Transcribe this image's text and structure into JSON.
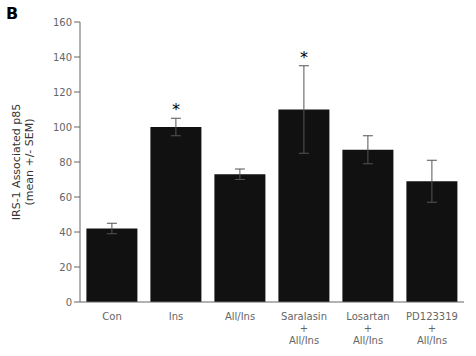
{
  "chart_data": {
    "type": "bar",
    "panel_label": "B",
    "categories": [
      "Con",
      "Ins",
      "All/Ins",
      "Saralasin\n+\nAll/Ins",
      "Losartan\n+\nAll/Ins",
      "PD123319\n+\nAll/Ins"
    ],
    "values": [
      42,
      100,
      73,
      110,
      87,
      69
    ],
    "errors": [
      3,
      5,
      3,
      25,
      8,
      12
    ],
    "color": "#111111",
    "ylabel": "IRS-1 Associated p85\n(mean +/- SEM)",
    "ylim": [
      0,
      160
    ],
    "yticks": [
      0,
      20,
      40,
      60,
      80,
      100,
      120,
      140,
      160
    ],
    "grid": false,
    "annotations": [
      {
        "category": "Ins",
        "text": "*"
      },
      {
        "category": "Saralasin\n+\nAll/Ins",
        "text": "*"
      }
    ]
  }
}
